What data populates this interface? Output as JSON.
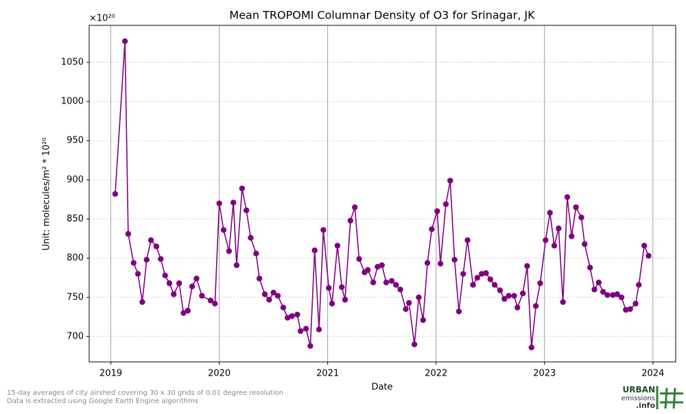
{
  "chart_data": {
    "type": "line",
    "title": "Mean TROPOMI Columnar Density of O3 for Srinagar, JK",
    "x_label": "Date",
    "y_label": "Unit: molecules/m² * 10²⁰",
    "y_offset_label": "×10²⁰",
    "x": [
      2019.04,
      2019.13,
      2019.16,
      2019.21,
      2019.25,
      2019.29,
      2019.33,
      2019.37,
      2019.42,
      2019.46,
      2019.5,
      2019.54,
      2019.58,
      2019.63,
      2019.67,
      2019.71,
      2019.75,
      2019.79,
      2019.84,
      2019.92,
      2019.96,
      2020.0,
      2020.04,
      2020.09,
      2020.13,
      2020.16,
      2020.21,
      2020.25,
      2020.29,
      2020.34,
      2020.37,
      2020.42,
      2020.46,
      2020.5,
      2020.54,
      2020.59,
      2020.63,
      2020.67,
      2020.72,
      2020.75,
      2020.8,
      2020.84,
      2020.88,
      2020.92,
      2020.96,
      2021.01,
      2021.04,
      2021.09,
      2021.13,
      2021.16,
      2021.21,
      2021.25,
      2021.29,
      2021.34,
      2021.37,
      2021.42,
      2021.46,
      2021.5,
      2021.54,
      2021.59,
      2021.63,
      2021.67,
      2021.72,
      2021.75,
      2021.8,
      2021.84,
      2021.88,
      2021.92,
      2021.96,
      2022.01,
      2022.04,
      2022.09,
      2022.13,
      2022.17,
      2022.21,
      2022.25,
      2022.29,
      2022.34,
      2022.38,
      2022.42,
      2022.46,
      2022.5,
      2022.54,
      2022.59,
      2022.63,
      2022.67,
      2022.72,
      2022.75,
      2022.8,
      2022.84,
      2022.88,
      2022.92,
      2022.96,
      2023.01,
      2023.05,
      2023.09,
      2023.13,
      2023.17,
      2023.21,
      2023.25,
      2023.29,
      2023.34,
      2023.37,
      2023.42,
      2023.46,
      2023.5,
      2023.54,
      2023.58,
      2023.63,
      2023.67,
      2023.71,
      2023.75,
      2023.79,
      2023.84,
      2023.87,
      2023.92,
      2023.96
    ],
    "series": [
      {
        "color": "#800080",
        "values": [
          882,
          1077,
          831,
          794,
          780,
          744,
          798,
          823,
          815,
          799,
          778,
          768,
          754,
          768,
          730,
          733,
          764,
          774,
          752,
          746,
          742,
          870,
          836,
          809,
          871,
          791,
          889,
          861,
          826,
          806,
          774,
          754,
          747,
          756,
          752,
          737,
          724,
          726,
          728,
          707,
          710,
          688,
          810,
          709,
          836,
          762,
          742,
          816,
          763,
          747,
          848,
          865,
          799,
          782,
          785,
          769,
          789,
          791,
          769,
          771,
          766,
          760,
          735,
          743,
          690,
          750,
          721,
          794,
          837,
          860,
          793,
          869,
          899,
          798,
          732,
          780,
          823,
          766,
          775,
          780,
          781,
          773,
          766,
          759,
          748,
          752,
          752,
          737,
          755,
          790,
          686,
          739,
          768,
          823,
          858,
          816,
          838,
          744,
          878,
          828,
          865,
          852,
          818,
          788,
          760,
          769,
          757,
          753,
          753,
          754,
          750,
          734,
          735,
          742,
          766,
          816,
          803
        ]
      }
    ],
    "xlim": [
      2018.8,
      2024.21
    ],
    "xticks": [
      2019,
      2020,
      2021,
      2022,
      2023,
      2024
    ],
    "ylim": [
      667.6,
      1097.2
    ],
    "yticks": [
      700,
      750,
      800,
      850,
      900,
      950,
      1000,
      1050
    ],
    "grid": true
  },
  "footnote": [
    "15-day averages of city airshed covering 30 x 30 grids of 0.01 degree resolution",
    "Data is extracted using Google Earth Engine algorithms"
  ],
  "logo": [
    "URBAN",
    "emissions",
    ".info"
  ]
}
